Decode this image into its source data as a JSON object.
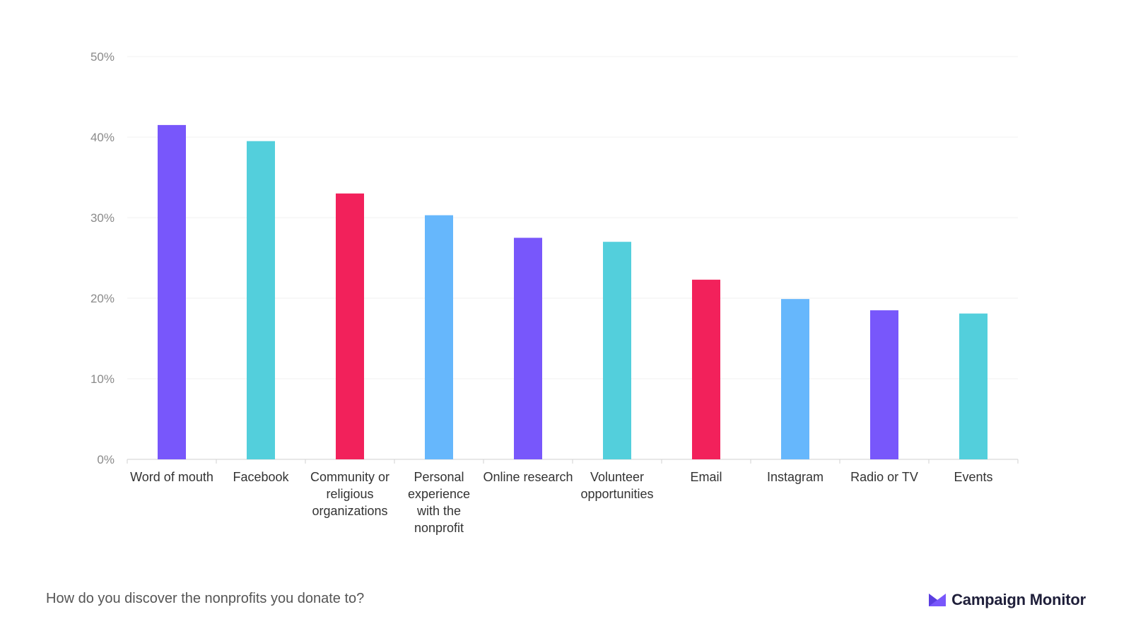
{
  "footer": {
    "caption": "How do you discover the nonprofits you donate to?",
    "brand_name": "Campaign Monitor",
    "brand_icon": "envelope-logo-icon"
  },
  "colors": {
    "purple": "#7857fb",
    "teal": "#53cfdc",
    "pink": "#f2215b",
    "light_blue": "#66b7fc",
    "axis": "#d0d0d0",
    "grid": "#f0f0f0",
    "brand_dark": "#1f1f3a"
  },
  "chart_data": {
    "type": "bar",
    "title": "",
    "xlabel": "",
    "ylabel": "",
    "ylim": [
      0,
      50
    ],
    "yticks": [
      0,
      10,
      20,
      30,
      40,
      50
    ],
    "ytick_labels": [
      "0%",
      "10%",
      "20%",
      "30%",
      "40%",
      "50%"
    ],
    "grid": true,
    "categories": [
      "Word of mouth",
      "Facebook",
      "Community or religious organizations",
      "Personal experience with the nonprofit",
      "Online research",
      "Volunteer opportunities",
      "Email",
      "Instagram",
      "Radio or TV",
      "Events"
    ],
    "category_lines": [
      [
        "Word of mouth"
      ],
      [
        "Facebook"
      ],
      [
        "Community or",
        "religious",
        "organizations"
      ],
      [
        "Personal",
        "experience",
        "with the",
        "nonprofit"
      ],
      [
        "Online research"
      ],
      [
        "Volunteer",
        "opportunities"
      ],
      [
        "Email"
      ],
      [
        "Instagram"
      ],
      [
        "Radio or TV"
      ],
      [
        "Events"
      ]
    ],
    "values": [
      41.5,
      39.5,
      33.0,
      30.3,
      27.5,
      27.0,
      22.3,
      19.9,
      18.5,
      18.1
    ],
    "bar_colors": [
      "#7857fb",
      "#53cfdc",
      "#f2215b",
      "#66b7fc",
      "#7857fb",
      "#53cfdc",
      "#f2215b",
      "#66b7fc",
      "#7857fb",
      "#53cfdc"
    ]
  }
}
